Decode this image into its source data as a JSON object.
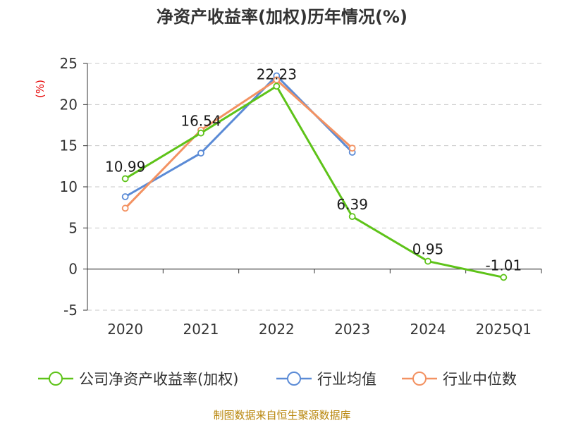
{
  "chart_data": {
    "type": "line",
    "title": "净资产收益率(加权)历年情况(%)",
    "ylabel": "(%)",
    "categories": [
      "2020",
      "2021",
      "2022",
      "2023",
      "2024",
      "2025Q1"
    ],
    "y_ticks": [
      "25",
      "20",
      "15",
      "10",
      "5",
      "0",
      "-5"
    ],
    "ylim": [
      -5,
      25
    ],
    "grid": true,
    "legend_position": "bottom",
    "series": [
      {
        "name": "公司净资产收益率(加权)",
        "color": "#5ec319",
        "values": [
          10.99,
          16.54,
          22.23,
          6.39,
          0.95,
          -1.01
        ],
        "labels": [
          "10.99",
          "16.54",
          "22.23",
          "6.39",
          "0.95",
          "-1.01"
        ]
      },
      {
        "name": "行业均值",
        "color": "#5b8bd6",
        "values": [
          8.8,
          14.1,
          23.5,
          14.2,
          null,
          null
        ]
      },
      {
        "name": "行业中位数",
        "color": "#f39262",
        "values": [
          7.4,
          16.9,
          23.0,
          14.7,
          null,
          null
        ]
      }
    ]
  },
  "footer": {
    "source": "制图数据来自恒生聚源数据库"
  }
}
